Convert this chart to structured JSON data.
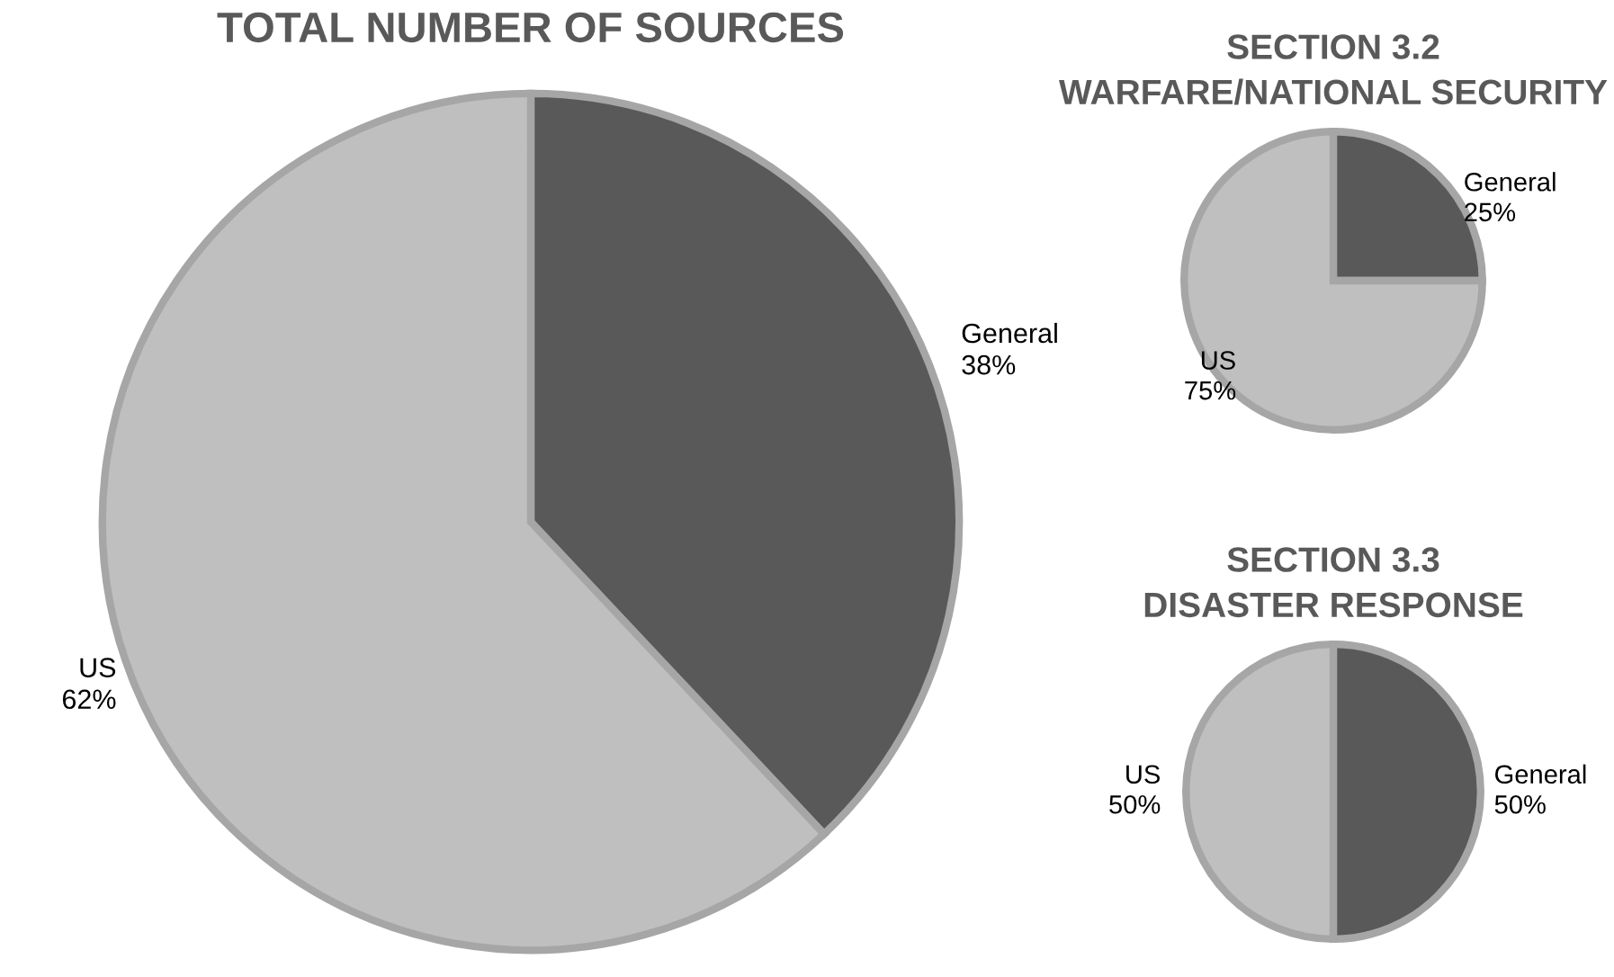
{
  "chart_data": [
    {
      "type": "pie",
      "title": "TOTAL NUMBER OF SOURCES",
      "categories": [
        "General",
        "US"
      ],
      "values": [
        38,
        62
      ],
      "value_labels": [
        "38%",
        "62%"
      ],
      "colors": [
        "#595959",
        "#bfbfbf"
      ],
      "data_labels": true
    },
    {
      "type": "pie",
      "title": "SECTION 3.2\nWARFARE/NATIONAL SECURITY",
      "categories": [
        "General",
        "US"
      ],
      "values": [
        25,
        75
      ],
      "value_labels": [
        "25%",
        "75%"
      ],
      "colors": [
        "#595959",
        "#bfbfbf"
      ],
      "data_labels": true
    },
    {
      "type": "pie",
      "title": "SECTION 3.3\nDISASTER RESPONSE",
      "categories": [
        "General",
        "US"
      ],
      "values": [
        50,
        50
      ],
      "value_labels": [
        "50%",
        "50%"
      ],
      "colors": [
        "#595959",
        "#bfbfbf"
      ],
      "data_labels": true
    }
  ]
}
